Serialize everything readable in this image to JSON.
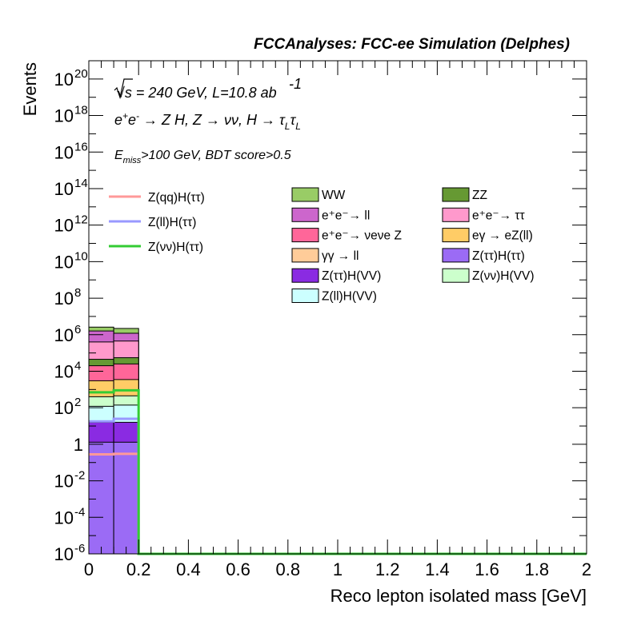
{
  "header": {
    "title": "FCCAnalyses: FCC-ee Simulation (Delphes)"
  },
  "annotations": {
    "energy": "√s = 240 GeV, L=10.8 ab",
    "energy_exp": "-1",
    "process": "e⁺e⁻ → Z H, Z  → νν, H → τLτL",
    "cuts": "Emiss>100 GeV, BDT score>0.5"
  },
  "chart_data": {
    "type": "bar",
    "stacked": true,
    "xlabel": "Reco lepton isolated mass [GeV]",
    "ylabel": "Events",
    "xlim": [
      0,
      2
    ],
    "ylim": [
      1e-06,
      1e+21
    ],
    "yscale": "log",
    "x_ticks": [
      "0",
      "0.2",
      "0.4",
      "0.6",
      "0.8",
      "1",
      "1.2",
      "1.4",
      "1.6",
      "1.8",
      "2"
    ],
    "y_ticks": [
      {
        "base": "10",
        "exp": "-6",
        "value": 1e-06
      },
      {
        "base": "10",
        "exp": "-4",
        "value": 0.0001
      },
      {
        "base": "10",
        "exp": "-2",
        "value": 0.01
      },
      {
        "base": "1",
        "exp": "",
        "value": 1
      },
      {
        "base": "10",
        "exp": "2",
        "value": 100.0
      },
      {
        "base": "10",
        "exp": "4",
        "value": 10000.0
      },
      {
        "base": "10",
        "exp": "6",
        "value": 1000000.0
      },
      {
        "base": "10",
        "exp": "8",
        "value": 100000000.0
      },
      {
        "base": "10",
        "exp": "10",
        "value": 10000000000.0
      },
      {
        "base": "10",
        "exp": "12",
        "value": 1000000000000.0
      },
      {
        "base": "10",
        "exp": "14",
        "value": 100000000000000.0
      },
      {
        "base": "10",
        "exp": "16",
        "value": 1e+16
      },
      {
        "base": "10",
        "exp": "18",
        "value": 1e+18
      },
      {
        "base": "10",
        "exp": "20",
        "value": 1e+20
      }
    ],
    "bins": [
      [
        0.0,
        0.1
      ],
      [
        0.1,
        0.2
      ]
    ],
    "stack": [
      {
        "name": "Z(ττ)H(ττ)",
        "color": "#9b6bf5",
        "tops": [
          1.3,
          1.3
        ]
      },
      {
        "name": "Z(ττ)H(VV)",
        "color": "#8a2be2",
        "tops": [
          16,
          16
        ]
      },
      {
        "name": "Z(ll)H(VV)",
        "color": "#ccffff",
        "tops": [
          120,
          140
        ]
      },
      {
        "name": "Z(νν)H(VV)",
        "color": "#ccffcc",
        "tops": [
          400,
          450
        ]
      },
      {
        "name": "eγ → eZ(ll)",
        "color": "#ffcc66",
        "tops": [
          3000,
          3500
        ]
      },
      {
        "name": "γγ → ll",
        "color": "#ffcc99",
        "tops": [
          700,
          800
        ]
      },
      {
        "name": "e⁺e⁻→ νeνe Z",
        "color": "#ff6699",
        "tops": [
          20000,
          25000
        ]
      },
      {
        "name": "ZZ",
        "color": "#669933",
        "tops": [
          45000,
          55000
        ]
      },
      {
        "name": "e⁺e⁻→ ττ",
        "color": "#ff99cc",
        "tops": [
          400000,
          450000
        ]
      },
      {
        "name": "e⁺e⁻→ ll",
        "color": "#cc66cc",
        "tops": [
          1600000,
          1200000
        ]
      },
      {
        "name": "WW",
        "color": "#99cc66",
        "tops": [
          2600000,
          2200000
        ]
      }
    ],
    "lines": [
      {
        "name": "Z(qq)H(ττ)",
        "color": "#ff9999",
        "values": [
          0.28,
          0.3,
          1e-06
        ]
      },
      {
        "name": "Z(ll)H(ττ)",
        "color": "#9999ff",
        "values": [
          18,
          25,
          1e-06
        ]
      },
      {
        "name": "Z(νν)H(ττ)",
        "color": "#33cc33",
        "values": [
          700,
          900,
          1e-06
        ]
      }
    ],
    "line_bins": [
      [
        0.0,
        0.1
      ],
      [
        0.1,
        0.2
      ],
      [
        0.2,
        2.0
      ]
    ]
  },
  "legend": {
    "lines": [
      "Z(qq)H(ττ)",
      "Z(ll)H(ττ)",
      "Z(νν)H(ττ)"
    ],
    "col1": [
      "WW",
      "e⁺e⁻→ ll",
      "e⁺e⁻→ νeνe Z",
      "γγ → ll",
      "Z(ττ)H(VV)",
      "Z(ll)H(VV)"
    ],
    "col2": [
      "ZZ",
      "e⁺e⁻→ ττ",
      "eγ → eZ(ll)",
      "Z(ττ)H(ττ)",
      "Z(νν)H(VV)"
    ]
  }
}
